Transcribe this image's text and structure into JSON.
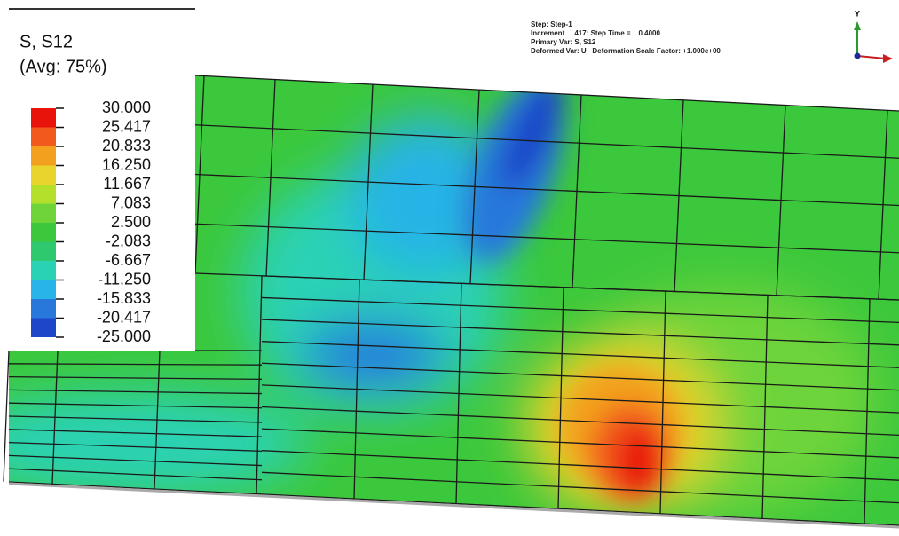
{
  "legend": {
    "title": "S, S12",
    "subtitle": "(Avg: 75%)",
    "levels": [
      "30.000",
      "25.417",
      "20.833",
      "16.250",
      "11.667",
      "7.083",
      "2.500",
      "-2.083",
      "-6.667",
      "-11.250",
      "-15.833",
      "-20.417",
      "-25.000"
    ],
    "colors": [
      "#e8140c",
      "#f2591c",
      "#f2a01e",
      "#e8d42c",
      "#b4e02c",
      "#6ed43a",
      "#3cc83c",
      "#2ec86e",
      "#2ad2b4",
      "#28b4e6",
      "#2878dc",
      "#1e46c8"
    ]
  },
  "info": {
    "lines": [
      "Step: Step-1",
      "Increment     417: Step Time =    0.4000",
      "Primary Var: S, S12",
      "Deformed Var: U   Deformation Scale Factor: +1.000e+00"
    ]
  },
  "triad": {
    "y_label": "Y"
  }
}
